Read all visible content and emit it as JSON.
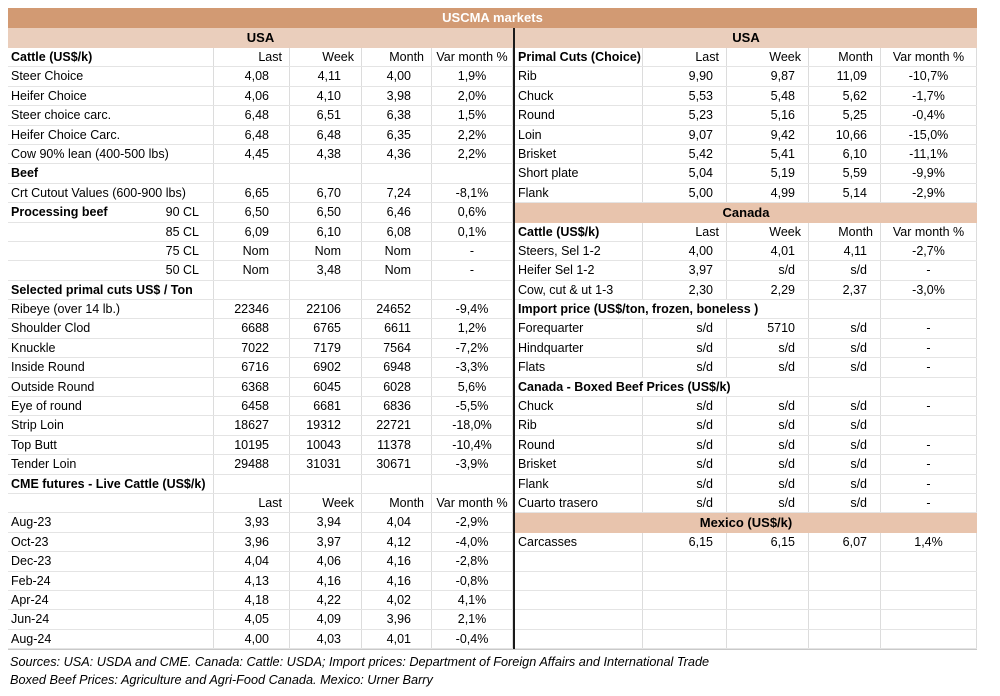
{
  "title": "USCMA markets",
  "columns": [
    "Last",
    "Week",
    "Month",
    "Var month %"
  ],
  "colors": {
    "title_band": "#d29a73",
    "usa_band": "#eacebc",
    "region_band": "#e8c4ad",
    "divider": "#1a1a1a",
    "gridline": "#dcdcdc"
  },
  "left": {
    "region": "USA",
    "rows": [
      {
        "t": "colheader",
        "l": "Cattle (US$/k)"
      },
      {
        "t": "data",
        "l": "Steer Choice",
        "v": [
          "4,08",
          "4,11",
          "4,00",
          "1,9%"
        ]
      },
      {
        "t": "data",
        "l": "Heifer Choice",
        "v": [
          "4,06",
          "4,10",
          "3,98",
          "2,0%"
        ]
      },
      {
        "t": "data",
        "l": "Steer choice carc.",
        "v": [
          "6,48",
          "6,51",
          "6,38",
          "1,5%"
        ]
      },
      {
        "t": "data",
        "l": "Heifer Choice Carc.",
        "v": [
          "6,48",
          "6,48",
          "6,35",
          "2,2%"
        ]
      },
      {
        "t": "data",
        "l": "Cow 90% lean (400-500 lbs)",
        "v": [
          "4,45",
          "4,38",
          "4,36",
          "2,2%"
        ]
      },
      {
        "t": "section",
        "l": "Beef"
      },
      {
        "t": "data",
        "l": "Crt Cutout Values (600-900 lbs)",
        "v": [
          "6,65",
          "6,70",
          "7,24",
          "-8,1%"
        ]
      },
      {
        "t": "data2",
        "l": "Processing beef",
        "l2": "90 CL",
        "v": [
          "6,50",
          "6,50",
          "6,46",
          "0,6%"
        ]
      },
      {
        "t": "rdata",
        "l": "85 CL",
        "v": [
          "6,09",
          "6,10",
          "6,08",
          "0,1%"
        ]
      },
      {
        "t": "rdata",
        "l": "75 CL",
        "v": [
          "Nom",
          "Nom",
          "Nom",
          "-"
        ]
      },
      {
        "t": "rdata",
        "l": "50 CL",
        "v": [
          "Nom",
          "3,48",
          "Nom",
          "-"
        ]
      },
      {
        "t": "section",
        "l": "Selected primal cuts US$ / Ton"
      },
      {
        "t": "data",
        "l": "Ribeye (over 14 lb.)",
        "v": [
          "22346",
          "22106",
          "24652",
          "-9,4%"
        ]
      },
      {
        "t": "data",
        "l": "Shoulder Clod",
        "v": [
          "6688",
          "6765",
          "6611",
          "1,2%"
        ]
      },
      {
        "t": "data",
        "l": "Knuckle",
        "v": [
          "7022",
          "7179",
          "7564",
          "-7,2%"
        ]
      },
      {
        "t": "data",
        "l": "Inside Round",
        "v": [
          "6716",
          "6902",
          "6948",
          "-3,3%"
        ]
      },
      {
        "t": "data",
        "l": "Outside Round",
        "v": [
          "6368",
          "6045",
          "6028",
          "5,6%"
        ]
      },
      {
        "t": "data",
        "l": "Eye of round",
        "v": [
          "6458",
          "6681",
          "6836",
          "-5,5%"
        ]
      },
      {
        "t": "data",
        "l": "Strip Loin",
        "v": [
          "18627",
          "19312",
          "22721",
          "-18,0%"
        ]
      },
      {
        "t": "data",
        "l": "Top Butt",
        "v": [
          "10195",
          "10043",
          "11378",
          "-10,4%"
        ]
      },
      {
        "t": "data",
        "l": "Tender Loin",
        "v": [
          "29488",
          "31031",
          "30671",
          "-3,9%"
        ]
      },
      {
        "t": "section",
        "l": "CME futures - Live Cattle (US$/k)"
      },
      {
        "t": "colheader",
        "l": ""
      },
      {
        "t": "data",
        "l": "Aug-23",
        "v": [
          "3,93",
          "3,94",
          "4,04",
          "-2,9%"
        ]
      },
      {
        "t": "data",
        "l": "Oct-23",
        "v": [
          "3,96",
          "3,97",
          "4,12",
          "-4,0%"
        ]
      },
      {
        "t": "data",
        "l": "Dec-23",
        "v": [
          "4,04",
          "4,06",
          "4,16",
          "-2,8%"
        ]
      },
      {
        "t": "data",
        "l": "Feb-24",
        "v": [
          "4,13",
          "4,16",
          "4,16",
          "-0,8%"
        ]
      },
      {
        "t": "data",
        "l": "Apr-24",
        "v": [
          "4,18",
          "4,22",
          "4,02",
          "4,1%"
        ]
      },
      {
        "t": "data",
        "l": "Jun-24",
        "v": [
          "4,05",
          "4,09",
          "3,96",
          "2,1%"
        ]
      },
      {
        "t": "data",
        "l": "Aug-24",
        "v": [
          "4,00",
          "4,03",
          "4,01",
          "-0,4%"
        ]
      }
    ]
  },
  "right": {
    "region": "USA",
    "rows": [
      {
        "t": "colheader",
        "l": "Primal Cuts (Choice)"
      },
      {
        "t": "data",
        "l": "Rib",
        "v": [
          "9,90",
          "9,87",
          "11,09",
          "-10,7%"
        ]
      },
      {
        "t": "data",
        "l": "Chuck",
        "v": [
          "5,53",
          "5,48",
          "5,62",
          "-1,7%"
        ]
      },
      {
        "t": "data",
        "l": "Round",
        "v": [
          "5,23",
          "5,16",
          "5,25",
          "-0,4%"
        ]
      },
      {
        "t": "data",
        "l": "Loin",
        "v": [
          "9,07",
          "9,42",
          "10,66",
          "-15,0%"
        ]
      },
      {
        "t": "data",
        "l": "Brisket",
        "v": [
          "5,42",
          "5,41",
          "6,10",
          "-11,1%"
        ]
      },
      {
        "t": "data",
        "l": "Short plate",
        "v": [
          "5,04",
          "5,19",
          "5,59",
          "-9,9%"
        ]
      },
      {
        "t": "data",
        "l": "Flank",
        "v": [
          "5,00",
          "4,99",
          "5,14",
          "-2,9%"
        ]
      },
      {
        "t": "band",
        "l": "Canada"
      },
      {
        "t": "colheader",
        "l": "Cattle (US$/k)"
      },
      {
        "t": "data",
        "l": "Steers, Sel 1-2",
        "v": [
          "4,00",
          "4,01",
          "4,11",
          "-2,7%"
        ]
      },
      {
        "t": "data",
        "l": "Heifer Sel 1-2",
        "v": [
          "3,97",
          "s/d",
          "s/d",
          "-"
        ]
      },
      {
        "t": "data",
        "l": "Cow, cut & ut 1-3",
        "v": [
          "2,30",
          "2,29",
          "2,37",
          "-3,0%"
        ]
      },
      {
        "t": "section",
        "l": "Import price (US$/ton, frozen, boneless )"
      },
      {
        "t": "data",
        "l": "Forequarter",
        "v": [
          "s/d",
          "5710",
          "s/d",
          "-"
        ]
      },
      {
        "t": "data",
        "l": "Hindquarter",
        "v": [
          "s/d",
          "s/d",
          "s/d",
          "-"
        ]
      },
      {
        "t": "data",
        "l": "Flats",
        "v": [
          "s/d",
          "s/d",
          "s/d",
          "-"
        ]
      },
      {
        "t": "section",
        "l": "Canada - Boxed Beef Prices (US$/k)"
      },
      {
        "t": "data",
        "l": "Chuck",
        "v": [
          "s/d",
          "s/d",
          "s/d",
          "-"
        ]
      },
      {
        "t": "data",
        "l": "Rib",
        "v": [
          "s/d",
          "s/d",
          "s/d",
          ""
        ]
      },
      {
        "t": "data",
        "l": "Round",
        "v": [
          "s/d",
          "s/d",
          "s/d",
          "-"
        ]
      },
      {
        "t": "data",
        "l": "Brisket",
        "v": [
          "s/d",
          "s/d",
          "s/d",
          "-"
        ]
      },
      {
        "t": "data",
        "l": "Flank",
        "v": [
          "s/d",
          "s/d",
          "s/d",
          "-"
        ]
      },
      {
        "t": "data",
        "l": "Cuarto trasero",
        "v": [
          "s/d",
          "s/d",
          "s/d",
          "-"
        ]
      },
      {
        "t": "band",
        "l": "Mexico (US$/k)"
      },
      {
        "t": "data",
        "l": "Carcasses",
        "v": [
          "6,15",
          "6,15",
          "6,07",
          "1,4%"
        ]
      },
      {
        "t": "empty"
      },
      {
        "t": "empty"
      },
      {
        "t": "empty"
      },
      {
        "t": "empty"
      },
      {
        "t": "empty"
      }
    ]
  },
  "sources": {
    "line1": "Sources: USA: USDA and CME. Canada: Cattle: USDA; Import prices: Department of Foreign Affairs and International Trade",
    "line2": "Boxed Beef Prices: Agriculture and Agri-Food Canada. Mexico: Urner Barry"
  }
}
